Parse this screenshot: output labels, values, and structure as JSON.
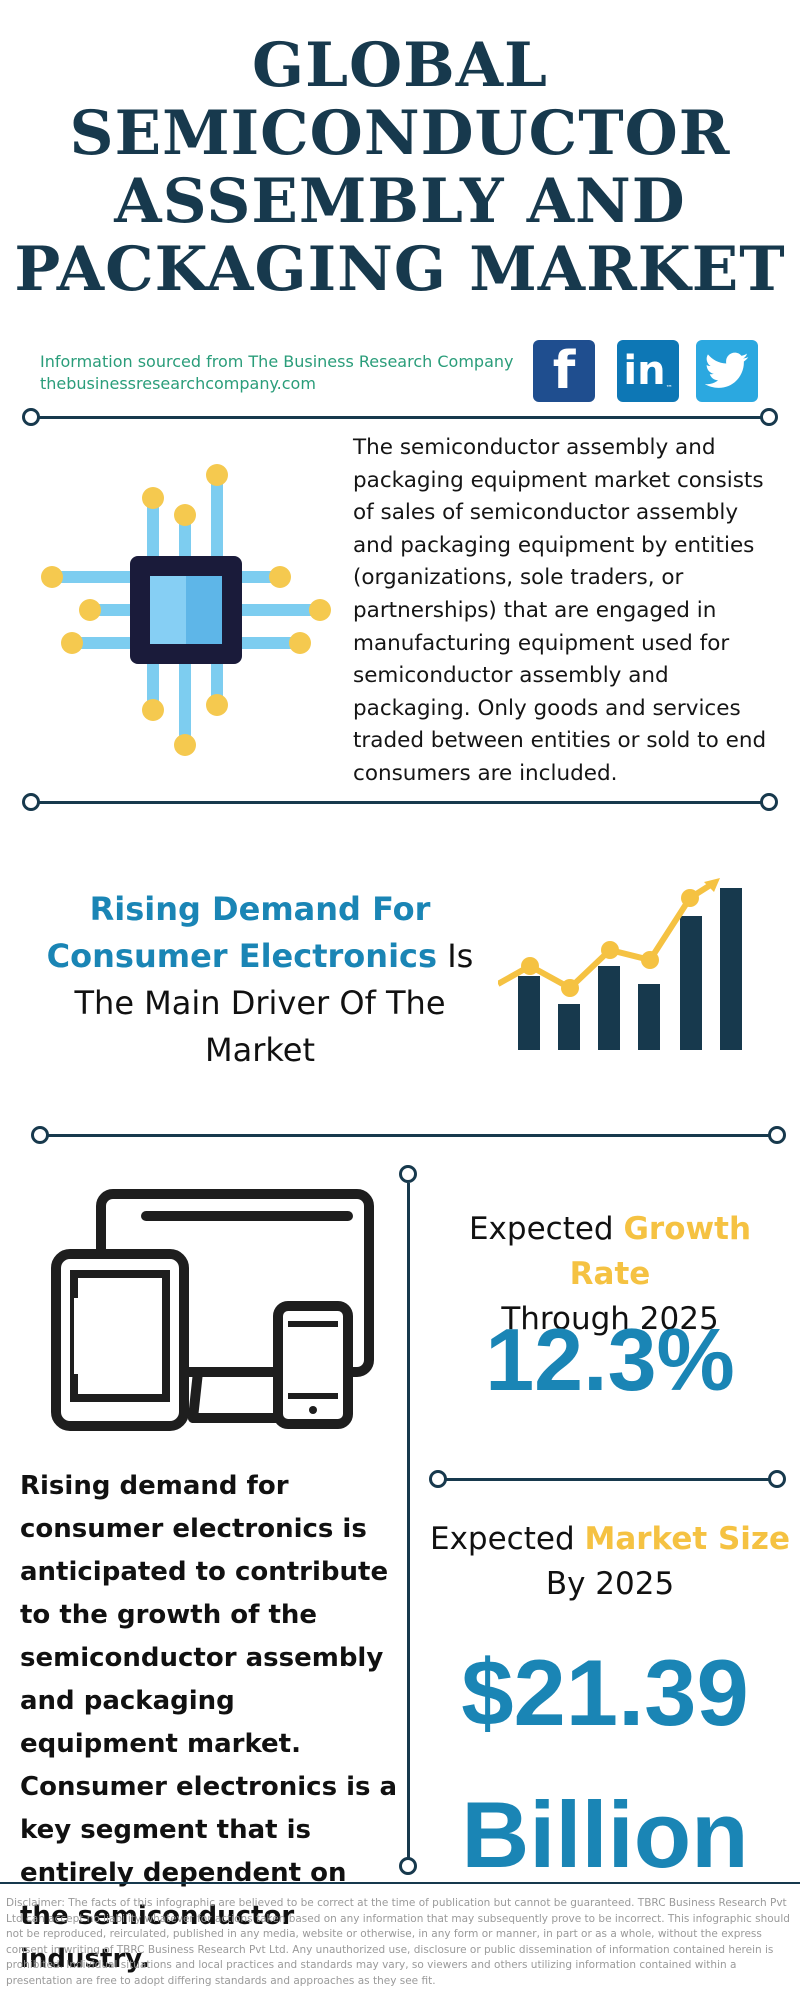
{
  "header": {
    "title_lines": [
      "GLOBAL",
      "SEMICONDUCTOR",
      "ASSEMBLY AND",
      "PACKAGING MARKET"
    ],
    "source_line1": "Information sourced from The Business Research Company",
    "source_line2": "thebusinessresearchcompany.com",
    "social": {
      "facebook_label": "f",
      "linkedin_label": "in",
      "linkedin_tm": "™"
    }
  },
  "intro": {
    "text": "The semiconductor assembly and packaging equipment market consists of sales of semiconductor assembly and packaging equipment by entities (organizations, sole traders, or partnerships) that are engaged in manufacturing equipment used for semiconductor assembly and packaging. Only goods and services traded between entities or sold to end consumers are included."
  },
  "driver": {
    "highlight": "Rising Demand For Consumer Electronics",
    "rest": " Is The Main Driver Of The Market"
  },
  "growth": {
    "label_prefix": "Expected ",
    "label_accent": "Growth Rate",
    "label_suffix": "Through 2025",
    "value": "12.3%"
  },
  "market_size": {
    "label_prefix": "Expected ",
    "label_accent": "Market Size",
    "label_suffix": "By 2025",
    "value_line1": "$21.39",
    "value_line2": "Billion"
  },
  "body": {
    "text": "Rising demand for consumer electronics is anticipated to contribute to the growth of the semiconductor assembly and packaging equipment market. Consumer electronics is a key segment that is entirely dependent on the semiconductor industry."
  },
  "disclaimer": "Disclaimer: The facts of this infographic are believed to be correct at the time of publication but cannot be guaranteed. TBRC Business Research Pvt Ltd can accept no liability whatever for actions taken based on any information that may subsequently prove to be incorrect. This infographic should not be reproduced, reirculated, published in any media, website or otherwise, in any form or manner, in part or as a whole, without the express consent in writing of TBRC Business Research Pvt Ltd. Any unauthorized use, disclosure or public dissemination of information contained herein is prohibited. Individual situations and local practices and standards may vary, so viewers and others utilizing information contained within a presentation are free to adopt differing standards and approaches as they see fit.",
  "colors": {
    "navy": "#17394d",
    "blue": "#1a85b5",
    "yellow": "#f5c242",
    "green": "#2a9d7a"
  },
  "icons": [
    "chip-icon",
    "bar-chart-growth-icon",
    "devices-icon",
    "facebook-icon",
    "linkedin-icon",
    "twitter-icon"
  ]
}
